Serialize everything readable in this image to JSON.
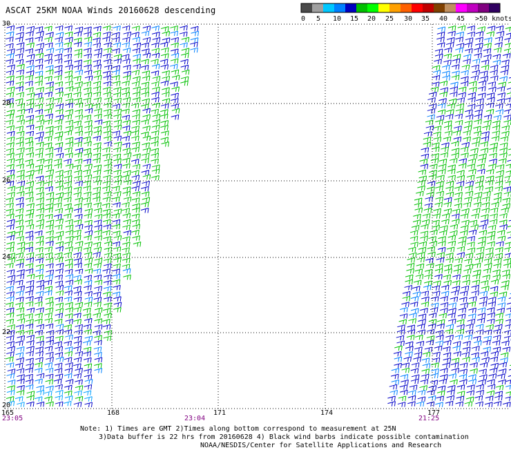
{
  "title": "ASCAT 25KM NOAA Winds 20160628 descending",
  "legend": {
    "units": ">50 knots",
    "ticks": [
      "0",
      "5",
      "10",
      "15",
      "20",
      "25",
      "30",
      "35",
      "40",
      "45"
    ],
    "colors": [
      "#4a4a4a",
      "#a0a0a0",
      "#00c8ff",
      "#0080ff",
      "#0000c0",
      "#00c000",
      "#00ff00",
      "#ffff00",
      "#ffa000",
      "#ff6000",
      "#ff0000",
      "#c00000",
      "#804000",
      "#c09060",
      "#ff00ff",
      "#c000c0",
      "#800080",
      "#300060"
    ]
  },
  "map": {
    "lat_labels": [
      "30",
      "28",
      "26",
      "24",
      "22",
      "20"
    ],
    "lon_labels": [
      "165",
      "168",
      "171",
      "174",
      "177"
    ],
    "time_labels": [
      "23:05",
      "23:04",
      "21:25"
    ]
  },
  "notes": {
    "line1": "Note: 1) Times are GMT 2)Times along bottom correspond to measurement at 25N",
    "line2": "3)Data buffer is 22 hrs from 20160628 4) Black wind barbs indicate possible contamination",
    "line3": "NOAA/NESDIS/Center for Satellite Applications and Research"
  }
}
